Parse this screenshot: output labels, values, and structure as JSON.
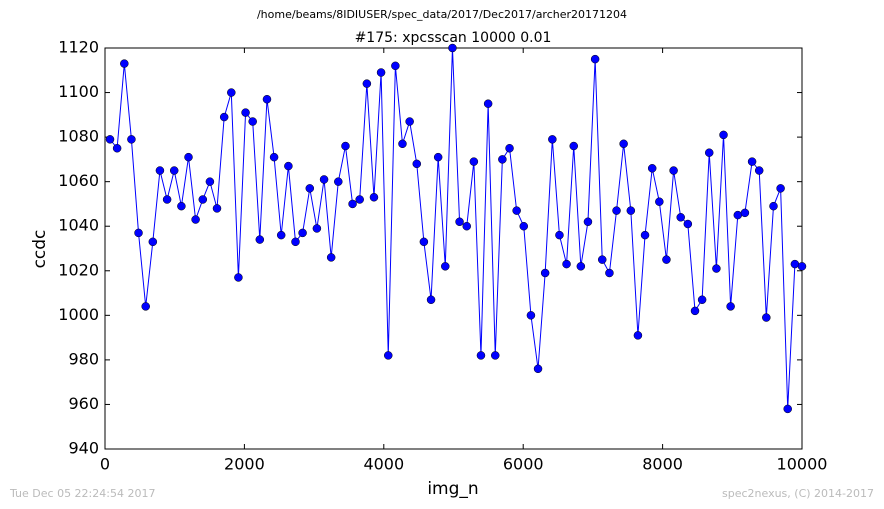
{
  "chart_data": {
    "type": "line",
    "header": "/home/beams/8IDIUSER/spec_data/2017/Dec2017/archer20171204",
    "title": "#175: xpcsscan 10000 0.01",
    "x_label": "img_n",
    "y_label": "ccdc",
    "footer_left": "Tue Dec 05 22:24:54 2017",
    "footer_right": "spec2nexus, (C) 2014-2017",
    "x": [
      72,
      174,
      277,
      379,
      481,
      584,
      686,
      788,
      891,
      993,
      1096,
      1198,
      1300,
      1403,
      1505,
      1607,
      1710,
      1812,
      1914,
      2017,
      2119,
      2221,
      2324,
      2426,
      2528,
      2631,
      2733,
      2835,
      2938,
      3040,
      3143,
      3245,
      3347,
      3450,
      3552,
      3654,
      3757,
      3859,
      3961,
      4064,
      4166,
      4268,
      4371,
      4473,
      4575,
      4678,
      4780,
      4882,
      4985,
      5087,
      5190,
      5292,
      5394,
      5497,
      5599,
      5701,
      5804,
      5906,
      6008,
      6111,
      6213,
      6315,
      6418,
      6520,
      6622,
      6725,
      6827,
      6929,
      7032,
      7134,
      7237,
      7339,
      7441,
      7544,
      7646,
      7748,
      7851,
      7953,
      8055,
      8158,
      8260,
      8362,
      8465,
      8567,
      8669,
      8772,
      8874,
      8976,
      9079,
      9181,
      9284,
      9386,
      9488,
      9591,
      9693,
      9795,
      9898,
      10000
    ],
    "series": [
      {
        "name": "ccdc",
        "color": "#0000ff",
        "values": [
          1079,
          1075,
          1113,
          1079,
          1037,
          1004,
          1033,
          1065,
          1052,
          1065,
          1049,
          1071,
          1043,
          1052,
          1060,
          1048,
          1089,
          1100,
          1017,
          1091,
          1087,
          1034,
          1097,
          1071,
          1036,
          1067,
          1033,
          1037,
          1057,
          1039,
          1061,
          1026,
          1060,
          1076,
          1050,
          1052,
          1104,
          1053,
          1109,
          982,
          1112,
          1077,
          1087,
          1068,
          1033,
          1007,
          1071,
          1022,
          1120,
          1042,
          1040,
          1069,
          982,
          1095,
          982,
          1070,
          1075,
          1047,
          1040,
          1000,
          976,
          1019,
          1079,
          1036,
          1023,
          1076,
          1022,
          1042,
          1115,
          1025,
          1019,
          1047,
          1077,
          1047,
          991,
          1036,
          1066,
          1051,
          1025,
          1065,
          1044,
          1041,
          1002,
          1007,
          1073,
          1021,
          1081,
          1004,
          1045,
          1046,
          1069,
          1065,
          999,
          1049,
          1057,
          958,
          1023,
          1022
        ]
      }
    ],
    "xlim": [
      0,
      10000
    ],
    "xticks": [
      0,
      2000,
      4000,
      6000,
      8000,
      10000
    ],
    "ylim": [
      940,
      1120
    ],
    "yticks": [
      940,
      960,
      980,
      1000,
      1020,
      1040,
      1060,
      1080,
      1100,
      1120
    ]
  }
}
